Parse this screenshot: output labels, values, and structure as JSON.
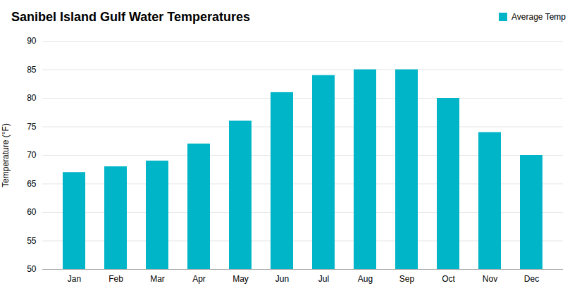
{
  "chart_data": {
    "type": "bar",
    "title": "Sanibel Island Gulf Water Temperatures",
    "ylabel": "Temperature (°F)",
    "categories": [
      "Jan",
      "Feb",
      "Mar",
      "Apr",
      "May",
      "Jun",
      "Jul",
      "Aug",
      "Sep",
      "Oct",
      "Nov",
      "Dec"
    ],
    "series": [
      {
        "name": "Average Temp",
        "color": "#00B5C8",
        "values": [
          67,
          68,
          69,
          72,
          76,
          81,
          84,
          85,
          85,
          80,
          74,
          70
        ]
      }
    ],
    "ylim": [
      50,
      90
    ],
    "yticks": [
      50,
      55,
      60,
      65,
      70,
      75,
      80,
      85,
      90
    ],
    "grid": true,
    "legend": "upper right"
  }
}
